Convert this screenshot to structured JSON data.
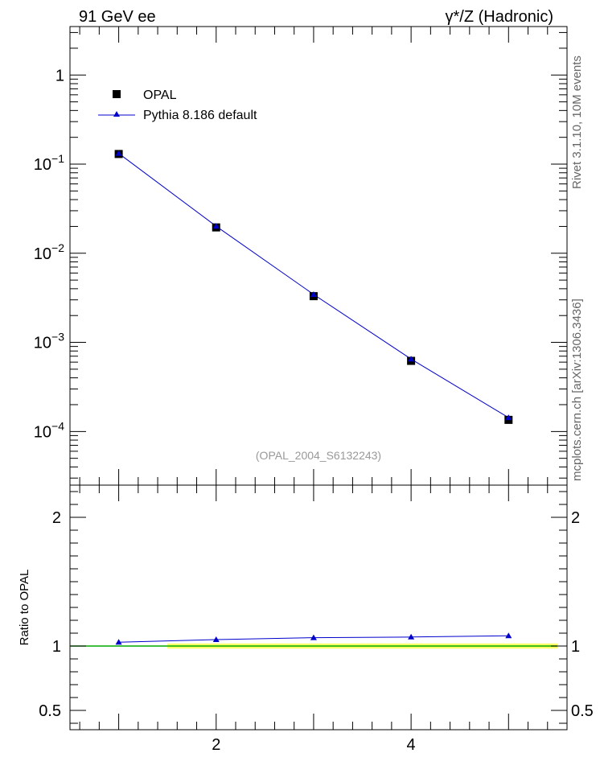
{
  "header": {
    "left_label": "91 GeV ee",
    "right_label": "γ*/Z (Hadronic)"
  },
  "side_labels": {
    "rivet": "Rivet 3.1.10,  10M events",
    "mcplots": "mcplots.cern.ch [arXiv:1306.3436]"
  },
  "watermark": "(OPAL_2004_S6132243)",
  "colors": {
    "data": "#000000",
    "mc": "#0000cc",
    "ref_band": "#ffff66",
    "ref_line": "#00aa00"
  },
  "chart_data": [
    {
      "type": "scatter",
      "scale": "log-y",
      "x": [
        1,
        2,
        3,
        4,
        5
      ],
      "series": [
        {
          "name": "OPAL",
          "marker": "square",
          "values": [
            0.13,
            0.0195,
            0.0033,
            0.00062,
            0.000135
          ]
        },
        {
          "name": "Pythia 8.186 default",
          "marker": "triangle",
          "line": true,
          "values": [
            0.132,
            0.0201,
            0.00345,
            0.00065,
            0.000143
          ]
        }
      ],
      "xlim": [
        0.5,
        5.6
      ],
      "ylim": [
        2.5e-05,
        3.5
      ],
      "yticks": [
        {
          "value": 1,
          "mantissa": "1",
          "exp": ""
        },
        {
          "value": 0.1,
          "mantissa": "10",
          "exp": "−1"
        },
        {
          "value": 0.01,
          "mantissa": "10",
          "exp": "−2"
        },
        {
          "value": 0.001,
          "mantissa": "10",
          "exp": "−3"
        },
        {
          "value": 0.0001,
          "mantissa": "10",
          "exp": "−4"
        }
      ],
      "legend": "top-left"
    },
    {
      "type": "line",
      "ylabel": "Ratio to OPAL",
      "x": [
        1,
        2,
        3,
        4,
        5
      ],
      "series": [
        {
          "name": "Pythia 8.186 default",
          "values": [
            1.03,
            1.05,
            1.065,
            1.07,
            1.08
          ]
        }
      ],
      "ref_band": [
        0.98,
        1.02
      ],
      "xlim": [
        0.5,
        5.6
      ],
      "ylim": [
        0.35,
        2.25
      ],
      "yticks": [
        0.5,
        1,
        2
      ],
      "ytick_labels": [
        "0.5",
        "1",
        "2"
      ],
      "xticks": [
        2,
        4
      ],
      "xtick_labels": [
        "2",
        "4"
      ]
    }
  ]
}
